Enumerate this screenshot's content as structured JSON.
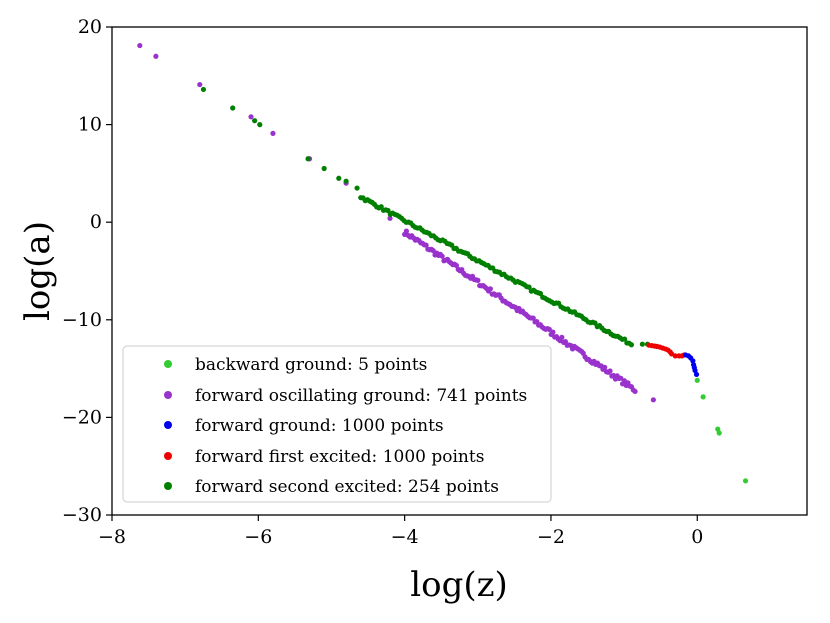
{
  "chart_data": {
    "type": "scatter",
    "title": "",
    "xlabel": "log(z)",
    "ylabel": "log(a)",
    "xlim": [
      -8.0,
      1.5
    ],
    "ylim": [
      -30,
      20
    ],
    "xticks": [
      -8,
      -6,
      -4,
      -2,
      0
    ],
    "xtick_labels": [
      "−8",
      "−6",
      "−4",
      "−2",
      "0"
    ],
    "yticks": [
      -30,
      -20,
      -10,
      0,
      10,
      20
    ],
    "ytick_labels": [
      "−30",
      "−20",
      "−10",
      "0",
      "10",
      "20"
    ],
    "grid": false,
    "legend_position": "lower-left",
    "series": [
      {
        "name": "backward ground: 5 points",
        "color": "#33cc33",
        "kind": "points",
        "points": [
          [
            0.0,
            -16.2
          ],
          [
            0.08,
            -17.9
          ],
          [
            0.28,
            -21.2
          ],
          [
            0.3,
            -21.6
          ],
          [
            0.66,
            -26.5
          ]
        ]
      },
      {
        "name": "forward oscillating ground: 741 points",
        "color": "#9933cc",
        "kind": "points",
        "points": [
          [
            -7.62,
            18.1
          ],
          [
            -7.4,
            17.0
          ],
          [
            -6.8,
            14.1
          ],
          [
            -6.1,
            10.8
          ],
          [
            -5.8,
            9.1
          ],
          [
            -5.3,
            6.5
          ],
          [
            -4.8,
            4.0
          ],
          [
            -4.2,
            0.4
          ],
          [
            -0.6,
            -18.2
          ]
        ],
        "band": {
          "x_start": -4.0,
          "y_start": -1.0,
          "x_end": -0.85,
          "y_end": -17.2,
          "count": 130,
          "jitter": 0.25
        }
      },
      {
        "name": "forward ground: 1000 points",
        "color": "#0000ee",
        "kind": "points",
        "points": [
          [
            -0.16,
            -13.6
          ],
          [
            -0.12,
            -13.7
          ],
          [
            -0.09,
            -13.9
          ],
          [
            -0.06,
            -14.2
          ],
          [
            -0.05,
            -14.6
          ],
          [
            -0.04,
            -14.9
          ],
          [
            -0.03,
            -15.2
          ],
          [
            -0.01,
            -15.6
          ]
        ]
      },
      {
        "name": "forward first excited: 1000 points",
        "color": "#ee0000",
        "kind": "points",
        "points": [
          [
            -0.66,
            -12.6
          ],
          [
            -0.62,
            -12.65
          ],
          [
            -0.58,
            -12.7
          ],
          [
            -0.55,
            -12.72
          ],
          [
            -0.51,
            -12.8
          ],
          [
            -0.47,
            -12.9
          ],
          [
            -0.43,
            -13.0
          ],
          [
            -0.4,
            -13.1
          ],
          [
            -0.37,
            -13.3
          ],
          [
            -0.35,
            -13.5
          ],
          [
            -0.3,
            -13.7
          ],
          [
            -0.25,
            -13.7
          ],
          [
            -0.21,
            -13.7
          ],
          [
            -0.18,
            -13.6
          ]
        ]
      },
      {
        "name": "forward second excited: 254 points",
        "color": "#007f00",
        "kind": "points",
        "points": [
          [
            -6.75,
            13.6
          ],
          [
            -6.35,
            11.7
          ],
          [
            -6.05,
            10.4
          ],
          [
            -5.98,
            10.0
          ],
          [
            -5.32,
            6.5
          ],
          [
            -5.1,
            5.5
          ],
          [
            -4.9,
            4.5
          ],
          [
            -4.8,
            4.2
          ],
          [
            -4.65,
            3.5
          ],
          [
            -0.75,
            -12.5
          ],
          [
            -0.68,
            -12.5
          ]
        ],
        "band": {
          "x_start": -4.6,
          "y_start": 2.6,
          "x_end": -0.9,
          "y_end": -12.5,
          "count": 120,
          "jitter": 0.15
        }
      }
    ]
  }
}
